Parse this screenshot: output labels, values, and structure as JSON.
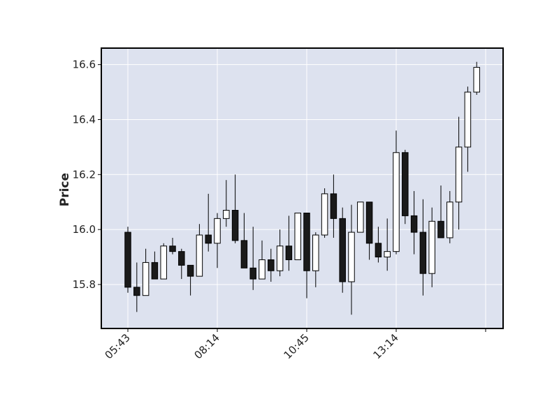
{
  "chart_data": {
    "type": "candlestick",
    "title": "",
    "xlabel": "",
    "ylabel": "Price",
    "ylim": [
      15.64,
      16.66
    ],
    "yticks": [
      "15.8",
      "16.0",
      "16.2",
      "16.4",
      "16.6"
    ],
    "xticks": [
      {
        "index": 0,
        "label": "05:43"
      },
      {
        "index": 10,
        "label": "08:14"
      },
      {
        "index": 20,
        "label": "10:45"
      },
      {
        "index": 30,
        "label": "13:14"
      },
      {
        "index": 40,
        "label": ""
      }
    ],
    "grid": true,
    "colors": {
      "background": "#dde2ef",
      "grid": "#ffffff",
      "up_fill": "#ffffff",
      "down_fill": "#1a1a1a",
      "edge": "#000000"
    },
    "candles": [
      {
        "open": 15.99,
        "high": 16.01,
        "low": 15.77,
        "close": 15.79
      },
      {
        "open": 15.79,
        "high": 15.88,
        "low": 15.7,
        "close": 15.76
      },
      {
        "open": 15.76,
        "high": 15.93,
        "low": 15.76,
        "close": 15.88
      },
      {
        "open": 15.88,
        "high": 15.92,
        "low": 15.82,
        "close": 15.82
      },
      {
        "open": 15.82,
        "high": 15.95,
        "low": 15.82,
        "close": 15.94
      },
      {
        "open": 15.94,
        "high": 15.97,
        "low": 15.91,
        "close": 15.92
      },
      {
        "open": 15.92,
        "high": 15.93,
        "low": 15.82,
        "close": 15.87
      },
      {
        "open": 15.87,
        "high": 15.87,
        "low": 15.76,
        "close": 15.83
      },
      {
        "open": 15.83,
        "high": 16.02,
        "low": 15.83,
        "close": 15.98
      },
      {
        "open": 15.98,
        "high": 16.13,
        "low": 15.92,
        "close": 15.95
      },
      {
        "open": 15.95,
        "high": 16.06,
        "low": 15.86,
        "close": 16.04
      },
      {
        "open": 16.04,
        "high": 16.18,
        "low": 16.01,
        "close": 16.07
      },
      {
        "open": 16.07,
        "high": 16.2,
        "low": 15.95,
        "close": 15.96
      },
      {
        "open": 15.96,
        "high": 16.06,
        "low": 15.86,
        "close": 15.86
      },
      {
        "open": 15.86,
        "high": 16.01,
        "low": 15.78,
        "close": 15.82
      },
      {
        "open": 15.82,
        "high": 15.96,
        "low": 15.82,
        "close": 15.89
      },
      {
        "open": 15.89,
        "high": 15.93,
        "low": 15.81,
        "close": 15.85
      },
      {
        "open": 15.85,
        "high": 16.0,
        "low": 15.83,
        "close": 15.94
      },
      {
        "open": 15.94,
        "high": 16.05,
        "low": 15.85,
        "close": 15.89
      },
      {
        "open": 15.89,
        "high": 16.06,
        "low": 15.89,
        "close": 16.06
      },
      {
        "open": 16.06,
        "high": 16.06,
        "low": 15.75,
        "close": 15.85
      },
      {
        "open": 15.85,
        "high": 15.99,
        "low": 15.79,
        "close": 15.98
      },
      {
        "open": 15.98,
        "high": 16.15,
        "low": 15.97,
        "close": 16.13
      },
      {
        "open": 16.13,
        "high": 16.2,
        "low": 15.97,
        "close": 16.04
      },
      {
        "open": 16.04,
        "high": 16.08,
        "low": 15.77,
        "close": 15.81
      },
      {
        "open": 15.81,
        "high": 16.09,
        "low": 15.69,
        "close": 15.99
      },
      {
        "open": 15.99,
        "high": 16.1,
        "low": 15.99,
        "close": 16.1
      },
      {
        "open": 16.1,
        "high": 16.1,
        "low": 15.89,
        "close": 15.95
      },
      {
        "open": 15.95,
        "high": 16.01,
        "low": 15.88,
        "close": 15.9
      },
      {
        "open": 15.9,
        "high": 16.04,
        "low": 15.85,
        "close": 15.92
      },
      {
        "open": 15.92,
        "high": 16.36,
        "low": 15.91,
        "close": 16.28
      },
      {
        "open": 16.28,
        "high": 16.29,
        "low": 16.02,
        "close": 16.05
      },
      {
        "open": 16.05,
        "high": 16.14,
        "low": 15.91,
        "close": 15.99
      },
      {
        "open": 15.99,
        "high": 16.11,
        "low": 15.76,
        "close": 15.84
      },
      {
        "open": 15.84,
        "high": 16.08,
        "low": 15.79,
        "close": 16.03
      },
      {
        "open": 16.03,
        "high": 16.16,
        "low": 15.97,
        "close": 15.97
      },
      {
        "open": 15.97,
        "high": 16.14,
        "low": 15.95,
        "close": 16.1
      },
      {
        "open": 16.1,
        "high": 16.41,
        "low": 16.0,
        "close": 16.3
      },
      {
        "open": 16.3,
        "high": 16.52,
        "low": 16.21,
        "close": 16.5
      },
      {
        "open": 16.5,
        "high": 16.61,
        "low": 16.49,
        "close": 16.59
      }
    ]
  }
}
